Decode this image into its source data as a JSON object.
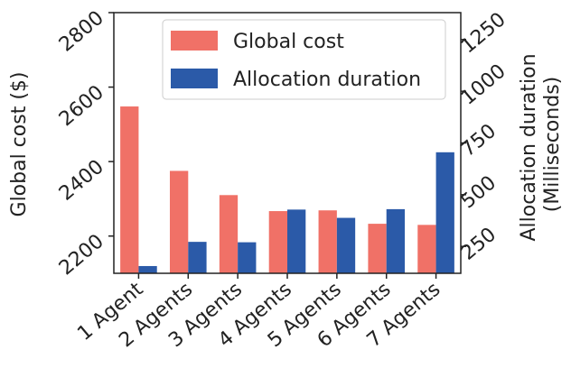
{
  "chart_data": {
    "type": "bar",
    "categories": [
      "1 Agent",
      "2 Agents",
      "3 Agents",
      "4 Agents",
      "5 Agents",
      "6 Agents",
      "7 Agents"
    ],
    "series": [
      {
        "name": "Global cost",
        "axis": "left",
        "color": "#f07167",
        "values": [
          2548,
          2375,
          2310,
          2267,
          2269,
          2233,
          2230
        ]
      },
      {
        "name": "Allocation duration",
        "axis": "right",
        "color": "#2b5aa8",
        "values": [
          155,
          272,
          270,
          428,
          388,
          430,
          705
        ]
      }
    ],
    "ylabel_left": "Global cost ($)",
    "ylabel_right": "Allocation duration\n(Milliseconds)",
    "ylim_left": [
      2100,
      2800
    ],
    "yticks_left": [
      2200,
      2400,
      2600,
      2800
    ],
    "ylim_right": [
      120,
      1380
    ],
    "yticks_right": [
      250,
      500,
      750,
      1000,
      1250
    ],
    "legend": "top-right",
    "grid": false
  }
}
